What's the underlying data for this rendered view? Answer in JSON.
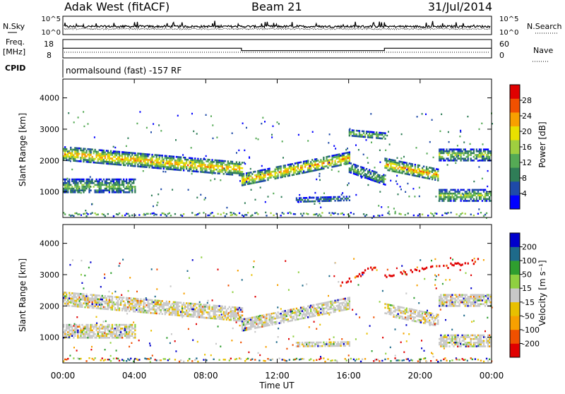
{
  "header": {
    "station": "Adak West (fitACF)",
    "beam": "Beam 21",
    "date": "31/Jul/2014"
  },
  "top_panels": {
    "nsky_label": "N.Sky",
    "nsky_ticks": [
      "10^5",
      "10^0"
    ],
    "nsearch_label": "N.Search",
    "nsearch_ticks": [
      "10^5",
      "10^0"
    ],
    "freq_label_1": "Freq.",
    "freq_label_2": "[MHz]",
    "freq_ticks": [
      "18",
      "8"
    ],
    "nave_label": "Nave",
    "nave_ticks": [
      "60",
      "0"
    ],
    "cpid_label": "CPID",
    "cpid_text": "normalsound (fast) -157 RF"
  },
  "chart_data": [
    {
      "type": "heatmap",
      "name": "power",
      "ylabel": "Slant Range [km]",
      "yticks": [
        "4000",
        "3000",
        "2000",
        "1000"
      ],
      "ylim": [
        180,
        4600
      ],
      "xlim": [
        0,
        24
      ],
      "colorbar_label": "Power [dB]",
      "colorbar_ticks": [
        "28",
        "24",
        "20",
        "16",
        "12",
        "8",
        "4"
      ],
      "colors": [
        "#0000ff",
        "#1e4aa8",
        "#2f7d57",
        "#55aa55",
        "#9fcf3f",
        "#e8e000",
        "#f7a000",
        "#f05000",
        "#e00000"
      ],
      "bands": [
        {
          "t0": 0,
          "t1": 10,
          "r0": 2250,
          "r1": 1750,
          "core_db": 22,
          "width": 420
        },
        {
          "t0": 10,
          "t1": 16,
          "r0": 1400,
          "r1": 2100,
          "core_db": 22,
          "width": 380
        },
        {
          "t0": 16,
          "t1": 18,
          "r0": 1800,
          "r1": 1400,
          "core_db": 12,
          "width": 300
        },
        {
          "t0": 18,
          "t1": 21,
          "r0": 1900,
          "r1": 1550,
          "core_db": 22,
          "width": 380
        },
        {
          "t0": 21,
          "t1": 24,
          "r0": 2200,
          "r1": 2200,
          "core_db": 14,
          "width": 360
        },
        {
          "t0": 0,
          "t1": 4,
          "r0": 1200,
          "r1": 1200,
          "core_db": 12,
          "width": 450
        },
        {
          "t0": 21,
          "t1": 24,
          "r0": 900,
          "r1": 900,
          "core_db": 14,
          "width": 380
        },
        {
          "t0": 13,
          "t1": 16,
          "r0": 750,
          "r1": 800,
          "core_db": 8,
          "width": 150
        },
        {
          "t0": 16,
          "t1": 18,
          "r0": 2900,
          "r1": 2800,
          "core_db": 14,
          "width": 200
        }
      ]
    },
    {
      "type": "heatmap",
      "name": "velocity",
      "ylabel": "Slant Range [km]",
      "yticks": [
        "4000",
        "3000",
        "2000",
        "1000"
      ],
      "ylim": [
        180,
        4600
      ],
      "xlim": [
        0,
        24
      ],
      "xlabel": "Time UT",
      "xticks": [
        "00:00",
        "04:00",
        "08:00",
        "12:00",
        "16:00",
        "20:00",
        "00:00"
      ],
      "colorbar_label": "Velocity [m s⁻¹]",
      "colorbar_ticks": [
        "200",
        "100",
        "50",
        "15",
        "-15",
        "-50",
        "-100",
        "-200"
      ],
      "colors": [
        "#e00000",
        "#f05000",
        "#f7a000",
        "#e8c000",
        "#c8c8c8",
        "#8fd040",
        "#2f9e2f",
        "#1e6a8a",
        "#0000cc"
      ],
      "bands": [
        {
          "t0": 0,
          "t1": 10,
          "r0": 2250,
          "r1": 1750,
          "width": 420
        },
        {
          "t0": 10,
          "t1": 16,
          "r0": 1400,
          "r1": 2100,
          "width": 380
        },
        {
          "t0": 18,
          "t1": 21,
          "r0": 1900,
          "r1": 1550,
          "width": 380
        },
        {
          "t0": 21,
          "t1": 24,
          "r0": 2200,
          "r1": 2200,
          "width": 360
        },
        {
          "t0": 0,
          "t1": 4,
          "r0": 1200,
          "r1": 1200,
          "width": 450
        },
        {
          "t0": 21,
          "t1": 24,
          "r0": 900,
          "r1": 900,
          "width": 380
        },
        {
          "t0": 13,
          "t1": 16,
          "r0": 780,
          "r1": 800,
          "width": 150
        }
      ],
      "arcs": [
        {
          "t0": 15.5,
          "t1": 17.5,
          "r0": 2700,
          "r1": 3300,
          "vel_class": 0
        },
        {
          "t0": 18.0,
          "t1": 23.5,
          "r0": 3000,
          "r1": 3500,
          "vel_class": 0
        }
      ]
    }
  ],
  "frequency_series": {
    "x": [
      0,
      10,
      10,
      18,
      18,
      24
    ],
    "y": [
      12.5,
      12.5,
      11.2,
      11.2,
      12.5,
      12.5
    ]
  }
}
